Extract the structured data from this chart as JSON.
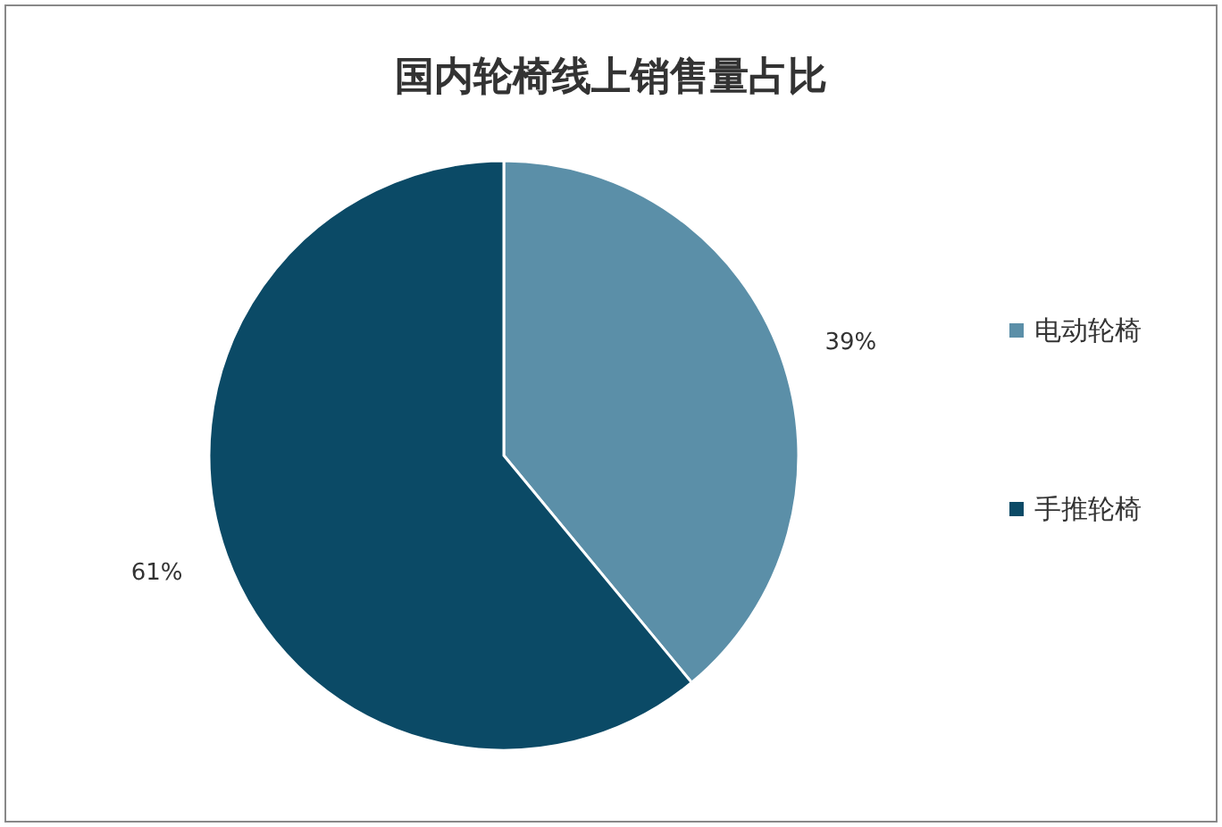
{
  "chart_data": {
    "type": "pie",
    "title": "国内轮椅线上销售量占比",
    "categories": [
      "电动轮椅",
      "手推轮椅"
    ],
    "values": [
      39,
      61
    ],
    "value_labels": [
      "39%",
      "61%"
    ],
    "colors": [
      "#5b8fa8",
      "#0b4a66"
    ],
    "legend": "right"
  }
}
